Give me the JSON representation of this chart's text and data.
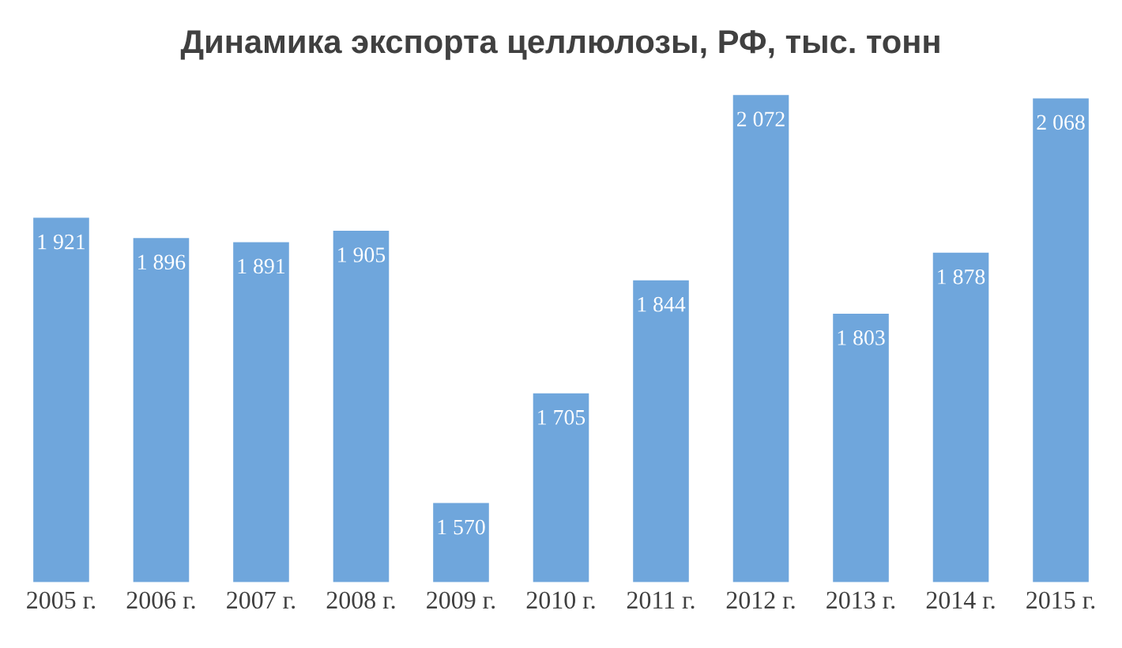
{
  "chart_data": {
    "type": "bar",
    "title": "Динамика экспорта целлюлозы, РФ, тыс. тонн",
    "categories": [
      "2005 г.",
      "2006 г.",
      "2007 г.",
      "2008 г.",
      "2009 г.",
      "2010 г.",
      "2011 г.",
      "2012 г.",
      "2013 г.",
      "2014 г.",
      "2015 г."
    ],
    "values": [
      1921,
      1896,
      1891,
      1905,
      1570,
      1705,
      1844,
      2072,
      1803,
      1878,
      2068
    ],
    "value_labels": [
      "1 921",
      "1 896",
      "1 891",
      "1 905",
      "1 570",
      "1 705",
      "1 844",
      "2 072",
      "1 803",
      "1 878",
      "2 068"
    ],
    "color": "#6fa6dc",
    "ylim": [
      1470,
      2072
    ],
    "tick_labels": "x",
    "grid": false,
    "legend": false
  }
}
